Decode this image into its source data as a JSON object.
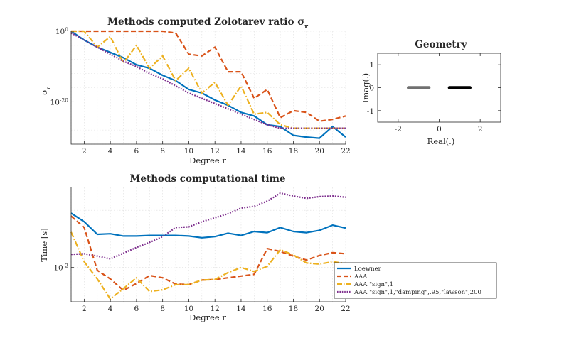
{
  "chart_data": [
    {
      "type": "line",
      "title": "Methods computed Zolotarev ratio σ",
      "title_sub": "r",
      "xlabel": "Degree r",
      "ylabel": "σ",
      "ylabel_sub": "r",
      "ylog": true,
      "ylim_exp": [
        -32,
        0
      ],
      "xlim": [
        1,
        22
      ],
      "xticks": [
        "2",
        "4",
        "6",
        "8",
        "10",
        "12",
        "14",
        "16",
        "18",
        "20",
        "22"
      ],
      "yticks": [
        {
          "label": "10",
          "sup": "0",
          "exp": 0
        },
        {
          "label": "10",
          "sup": "-20",
          "exp": -20
        }
      ],
      "x": [
        1,
        2,
        3,
        4,
        5,
        6,
        7,
        8,
        9,
        10,
        11,
        12,
        13,
        14,
        15,
        16,
        17,
        18,
        19,
        20,
        21,
        22
      ],
      "series": [
        {
          "name": "Loewner",
          "log10": [
            0,
            -2.5,
            -4.5,
            -6,
            -7.5,
            -9.5,
            -10.5,
            -12.5,
            -14,
            -16.5,
            -17.5,
            -19.5,
            -21,
            -23,
            -24,
            -26.5,
            -27,
            -29.5,
            -30,
            -30.3,
            -27,
            -30
          ]
        },
        {
          "name": "AAA",
          "log10": [
            0,
            0,
            0,
            0,
            0,
            0,
            0,
            0,
            -0.5,
            -6.5,
            -7,
            -4.5,
            -11.5,
            -11.5,
            -19,
            -16.5,
            -24.5,
            -22.5,
            -23,
            -25.5,
            -25,
            -24
          ]
        },
        {
          "name": "AAA \"sign\",1",
          "log10": [
            0,
            0,
            -4.5,
            -1.5,
            -9,
            -4,
            -10.5,
            -7,
            -14,
            -10.5,
            -17.5,
            -14.5,
            -21,
            -15.5,
            -23.5,
            -23,
            -26.5,
            -27.5,
            -27.5,
            -27.5,
            -27.5,
            -27.5
          ]
        },
        {
          "name": "AAA \"sign\",1,\"damping\",.95,\"lawson\",200",
          "log10": [
            -0.5,
            -2.5,
            -4.5,
            -6.5,
            -8.5,
            -10,
            -12,
            -13.5,
            -15.5,
            -17.5,
            -19,
            -20.5,
            -22,
            -23.5,
            -25,
            -26.5,
            -27.5,
            -27.5,
            -27.5,
            -27.5,
            -27.5,
            -27.5
          ]
        }
      ]
    },
    {
      "type": "scatter",
      "title": "Geometry",
      "xlabel": "Real(.)",
      "ylabel": "Imag(.)",
      "xlim": [
        -3,
        3
      ],
      "ylim": [
        -1.5,
        1.5
      ],
      "xticks": [
        "-2",
        "0",
        "2"
      ],
      "yticks": [
        "1",
        "0",
        "-1"
      ],
      "segments": [
        {
          "name": "left interval",
          "from": -1.5,
          "to": -0.5,
          "imag": 0,
          "color": "#707070"
        },
        {
          "name": "right interval",
          "from": 0.5,
          "to": 1.5,
          "imag": 0,
          "color": "#000000"
        }
      ]
    },
    {
      "type": "line",
      "title": "Methods computational time",
      "xlabel": "Degree r",
      "ylabel": "Time [s]",
      "ylog": true,
      "ylim_exp": [
        -2.6,
        -0.6
      ],
      "xlim": [
        1,
        22
      ],
      "xticks": [
        "2",
        "4",
        "6",
        "8",
        "10",
        "12",
        "14",
        "16",
        "18",
        "20",
        "22"
      ],
      "yticks": [
        {
          "label": "10",
          "sup": "-2",
          "exp": -2
        }
      ],
      "x": [
        1,
        2,
        3,
        4,
        5,
        6,
        7,
        8,
        9,
        10,
        11,
        12,
        13,
        14,
        15,
        16,
        17,
        18,
        19,
        20,
        21,
        22
      ],
      "series": [
        {
          "name": "Loewner",
          "log10": [
            -1.05,
            -1.2,
            -1.42,
            -1.41,
            -1.45,
            -1.45,
            -1.44,
            -1.44,
            -1.44,
            -1.45,
            -1.48,
            -1.46,
            -1.4,
            -1.44,
            -1.37,
            -1.39,
            -1.3,
            -1.37,
            -1.39,
            -1.35,
            -1.26,
            -1.31
          ]
        },
        {
          "name": "AAA",
          "log10": [
            -1.1,
            -1.3,
            -2.05,
            -2.2,
            -2.4,
            -2.28,
            -2.14,
            -2.18,
            -2.29,
            -2.3,
            -2.22,
            -2.21,
            -2.18,
            -2.15,
            -2.12,
            -1.67,
            -1.72,
            -1.8,
            -1.87,
            -1.79,
            -1.74,
            -1.76
          ]
        },
        {
          "name": "AAA \"sign\",1",
          "log10": [
            -1.38,
            -1.9,
            -2.2,
            -2.55,
            -2.37,
            -2.18,
            -2.42,
            -2.39,
            -2.3,
            -2.3,
            -2.22,
            -2.21,
            -2.09,
            -2.0,
            -2.07,
            -1.98,
            -1.69,
            -1.78,
            -1.92,
            -1.94,
            -1.9,
            -1.93
          ]
        },
        {
          "name": "AAA \"sign\",1,\"damping\",.95,\"lawson\",200",
          "log10": [
            -1.77,
            -1.76,
            -1.8,
            -1.85,
            -1.75,
            -1.65,
            -1.56,
            -1.46,
            -1.3,
            -1.29,
            -1.2,
            -1.13,
            -1.06,
            -0.96,
            -0.93,
            -0.84,
            -0.7,
            -0.75,
            -0.79,
            -0.76,
            -0.75,
            -0.77
          ]
        }
      ]
    }
  ],
  "legend": [
    {
      "label": "Loewner",
      "color": "#0072bd",
      "dash": "solid"
    },
    {
      "label": "AAA",
      "color": "#d95319",
      "dash": "dashed"
    },
    {
      "label": "AAA \"sign\",1",
      "color": "#edb120",
      "dash": "dashdot"
    },
    {
      "label": "AAA \"sign\",1,\"damping\",.95,\"lawson\",200",
      "color": "#7e2f8e",
      "dash": "dotted"
    }
  ]
}
